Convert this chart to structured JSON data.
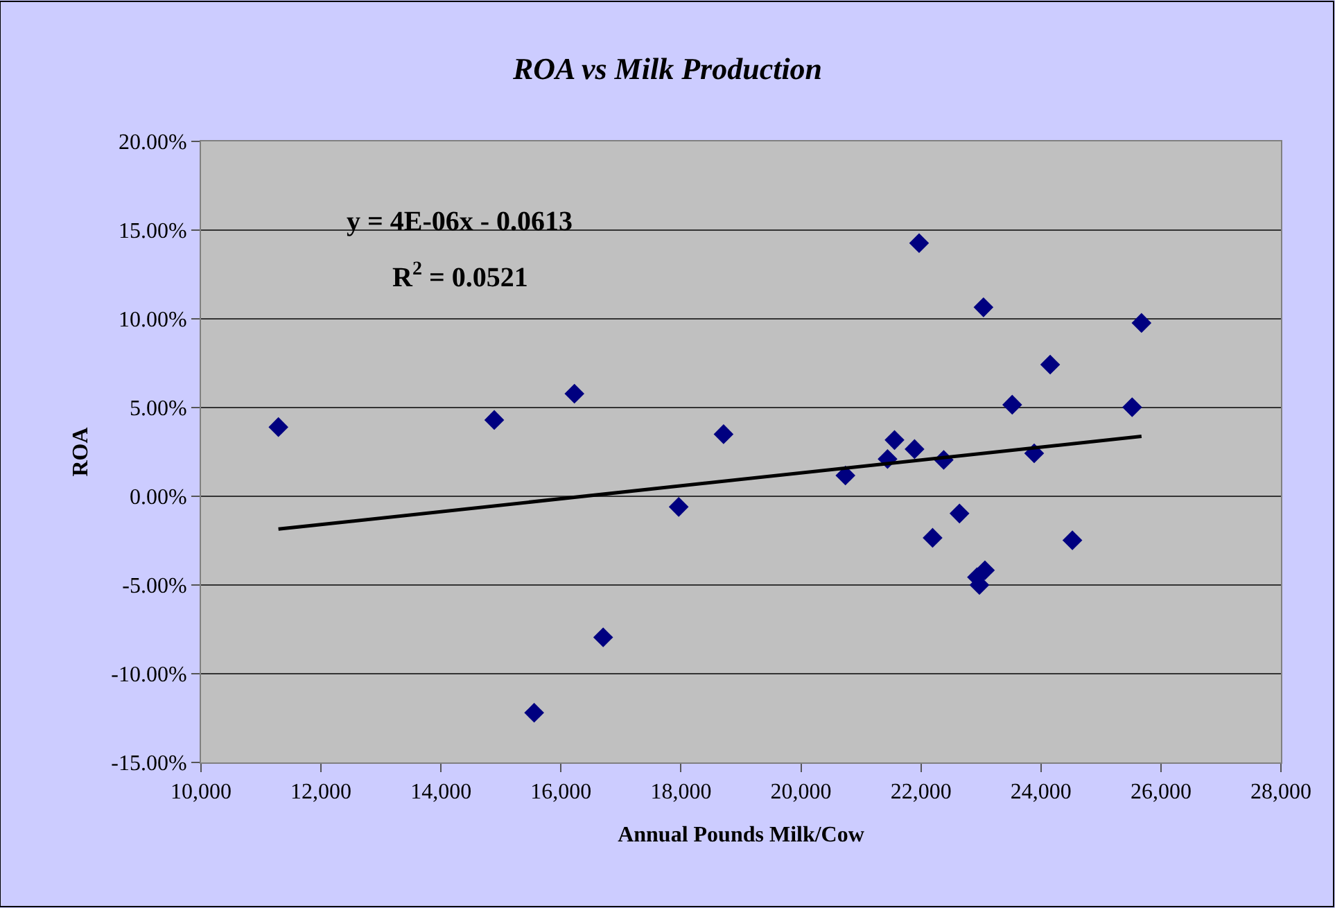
{
  "chart_data": {
    "type": "scatter",
    "title": "ROA vs Milk Production",
    "xlabel": "Annual Pounds Milk/Cow",
    "ylabel": "ROA",
    "annotations": [
      "y = 4E-06x - 0.0613",
      "R$^{2}$ = 0.0521"
    ],
    "series": [
      {
        "color": "#000080",
        "marker": "diamond",
        "x": [
          11290,
          14888,
          16224,
          18710,
          17962,
          16703,
          15553,
          21969,
          23042,
          25676,
          24154,
          23521,
          25520,
          21559,
          21893,
          21443,
          22379,
          23887,
          20741,
          22642,
          22194,
          24524,
          23066,
          22934,
          22974
        ],
        "values": [
          3.9,
          4.3,
          5.78,
          3.5,
          -0.6,
          -7.95,
          -12.2,
          14.27,
          10.65,
          9.77,
          7.42,
          5.16,
          5.02,
          3.17,
          2.66,
          2.1,
          2.05,
          2.42,
          1.17,
          -0.97,
          -2.34,
          -2.48,
          -4.17,
          -4.56,
          -5.0
        ]
      },
      {
        "type": "line",
        "color": "#000000",
        "marker": "none",
        "line_style": "solid",
        "x": [
          11290,
          25676
        ],
        "values": [
          -1.85,
          3.38
        ]
      }
    ],
    "xlim": [
      10000,
      28000
    ],
    "xticks": [
      {
        "value": 10000,
        "label": "10,000"
      },
      {
        "value": 12000,
        "label": "12,000"
      },
      {
        "value": 14000,
        "label": "14,000"
      },
      {
        "value": 16000,
        "label": "16,000"
      },
      {
        "value": 18000,
        "label": "18,000"
      },
      {
        "value": 20000,
        "label": "20,000"
      },
      {
        "value": 22000,
        "label": "22,000"
      },
      {
        "value": 24000,
        "label": "24,000"
      },
      {
        "value": 26000,
        "label": "26,000"
      },
      {
        "value": 28000,
        "label": "28,000"
      }
    ],
    "ylim": [
      -15,
      20
    ],
    "yticks": [
      {
        "value": -15,
        "label": "-15.00%"
      },
      {
        "value": -10,
        "label": "-10.00%"
      },
      {
        "value": -5,
        "label": "-5.00%"
      },
      {
        "value": 0,
        "label": "0.00%"
      },
      {
        "value": 5,
        "label": "5.00%"
      },
      {
        "value": 10,
        "label": "10.00%"
      },
      {
        "value": 15,
        "label": "15.00%"
      },
      {
        "value": 20,
        "label": "20.00%"
      }
    ],
    "grid": "y"
  }
}
